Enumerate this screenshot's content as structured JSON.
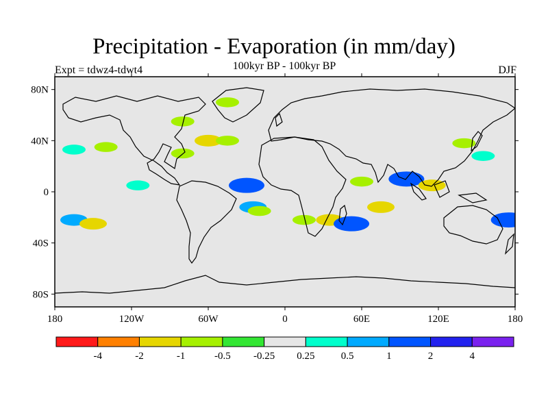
{
  "title": "Precipitation - Evaporation (in mm/day)",
  "subtitle": "100kyr BP - 100kyr BP",
  "experiment_label": "Expt = tdwz4-tdwt4",
  "season_label": "DJF",
  "map": {
    "projection": "cylindrical equidistant",
    "lon_range": [
      -180,
      180
    ],
    "lat_range": [
      -90,
      90
    ],
    "lat_ticks": [
      {
        "value": 80,
        "label": "80N"
      },
      {
        "value": 40,
        "label": "40N"
      },
      {
        "value": 0,
        "label": "0"
      },
      {
        "value": -40,
        "label": "40S"
      },
      {
        "value": -80,
        "label": "80S"
      }
    ],
    "lon_ticks": [
      {
        "value": -180,
        "label": "180"
      },
      {
        "value": -120,
        "label": "120W"
      },
      {
        "value": -60,
        "label": "60W"
      },
      {
        "value": 0,
        "label": "0"
      },
      {
        "value": 60,
        "label": "60E"
      },
      {
        "value": 120,
        "label": "120E"
      },
      {
        "value": 180,
        "label": "180"
      }
    ],
    "background_color": "#e6e6e6"
  },
  "colorbar": {
    "colors": [
      "#ff1a1a",
      "#ff8000",
      "#e6d600",
      "#a6f000",
      "#33e633",
      "#e6e6e6",
      "#00ffcc",
      "#00aaff",
      "#0055ff",
      "#2222ee",
      "#7a22ee"
    ],
    "labels": [
      "-4",
      "-2",
      "-1",
      "-0.5",
      "-0.25",
      "0.25",
      "0.5",
      "1",
      "2",
      "4"
    ]
  },
  "chart_data": {
    "type": "heatmap",
    "title": "Precipitation - Evaporation (in mm/day)",
    "subtitle": "100kyr BP - 100kyr BP",
    "levels": [
      -4,
      -2,
      -1,
      -0.5,
      -0.25,
      0.25,
      0.5,
      1,
      2,
      4
    ],
    "anomaly_regions": [
      {
        "lon": -165,
        "lat": -22,
        "value": 1
      },
      {
        "lon": -150,
        "lat": -25,
        "value": -1
      },
      {
        "lon": -165,
        "lat": 33,
        "value": 0.5
      },
      {
        "lon": -140,
        "lat": 35,
        "value": -0.5
      },
      {
        "lon": -115,
        "lat": 5,
        "value": 0.5
      },
      {
        "lon": -80,
        "lat": 30,
        "value": -0.5
      },
      {
        "lon": -60,
        "lat": 40,
        "value": -1
      },
      {
        "lon": -45,
        "lat": 40,
        "value": -0.5
      },
      {
        "lon": -30,
        "lat": 5,
        "value": 2
      },
      {
        "lon": -25,
        "lat": -12,
        "value": 1
      },
      {
        "lon": -20,
        "lat": -15,
        "value": -0.5
      },
      {
        "lon": 15,
        "lat": -22,
        "value": -0.5
      },
      {
        "lon": 35,
        "lat": -22,
        "value": -1
      },
      {
        "lon": 52,
        "lat": -25,
        "value": 2
      },
      {
        "lon": 60,
        "lat": 8,
        "value": -0.5
      },
      {
        "lon": 75,
        "lat": -12,
        "value": -1
      },
      {
        "lon": 95,
        "lat": 10,
        "value": 2
      },
      {
        "lon": 115,
        "lat": 5,
        "value": -1
      },
      {
        "lon": 140,
        "lat": 38,
        "value": -0.5
      },
      {
        "lon": 155,
        "lat": 28,
        "value": 0.5
      },
      {
        "lon": 175,
        "lat": -22,
        "value": 2
      },
      {
        "lon": -80,
        "lat": 55,
        "value": -0.5
      },
      {
        "lon": -45,
        "lat": 70,
        "value": -0.5
      }
    ]
  }
}
